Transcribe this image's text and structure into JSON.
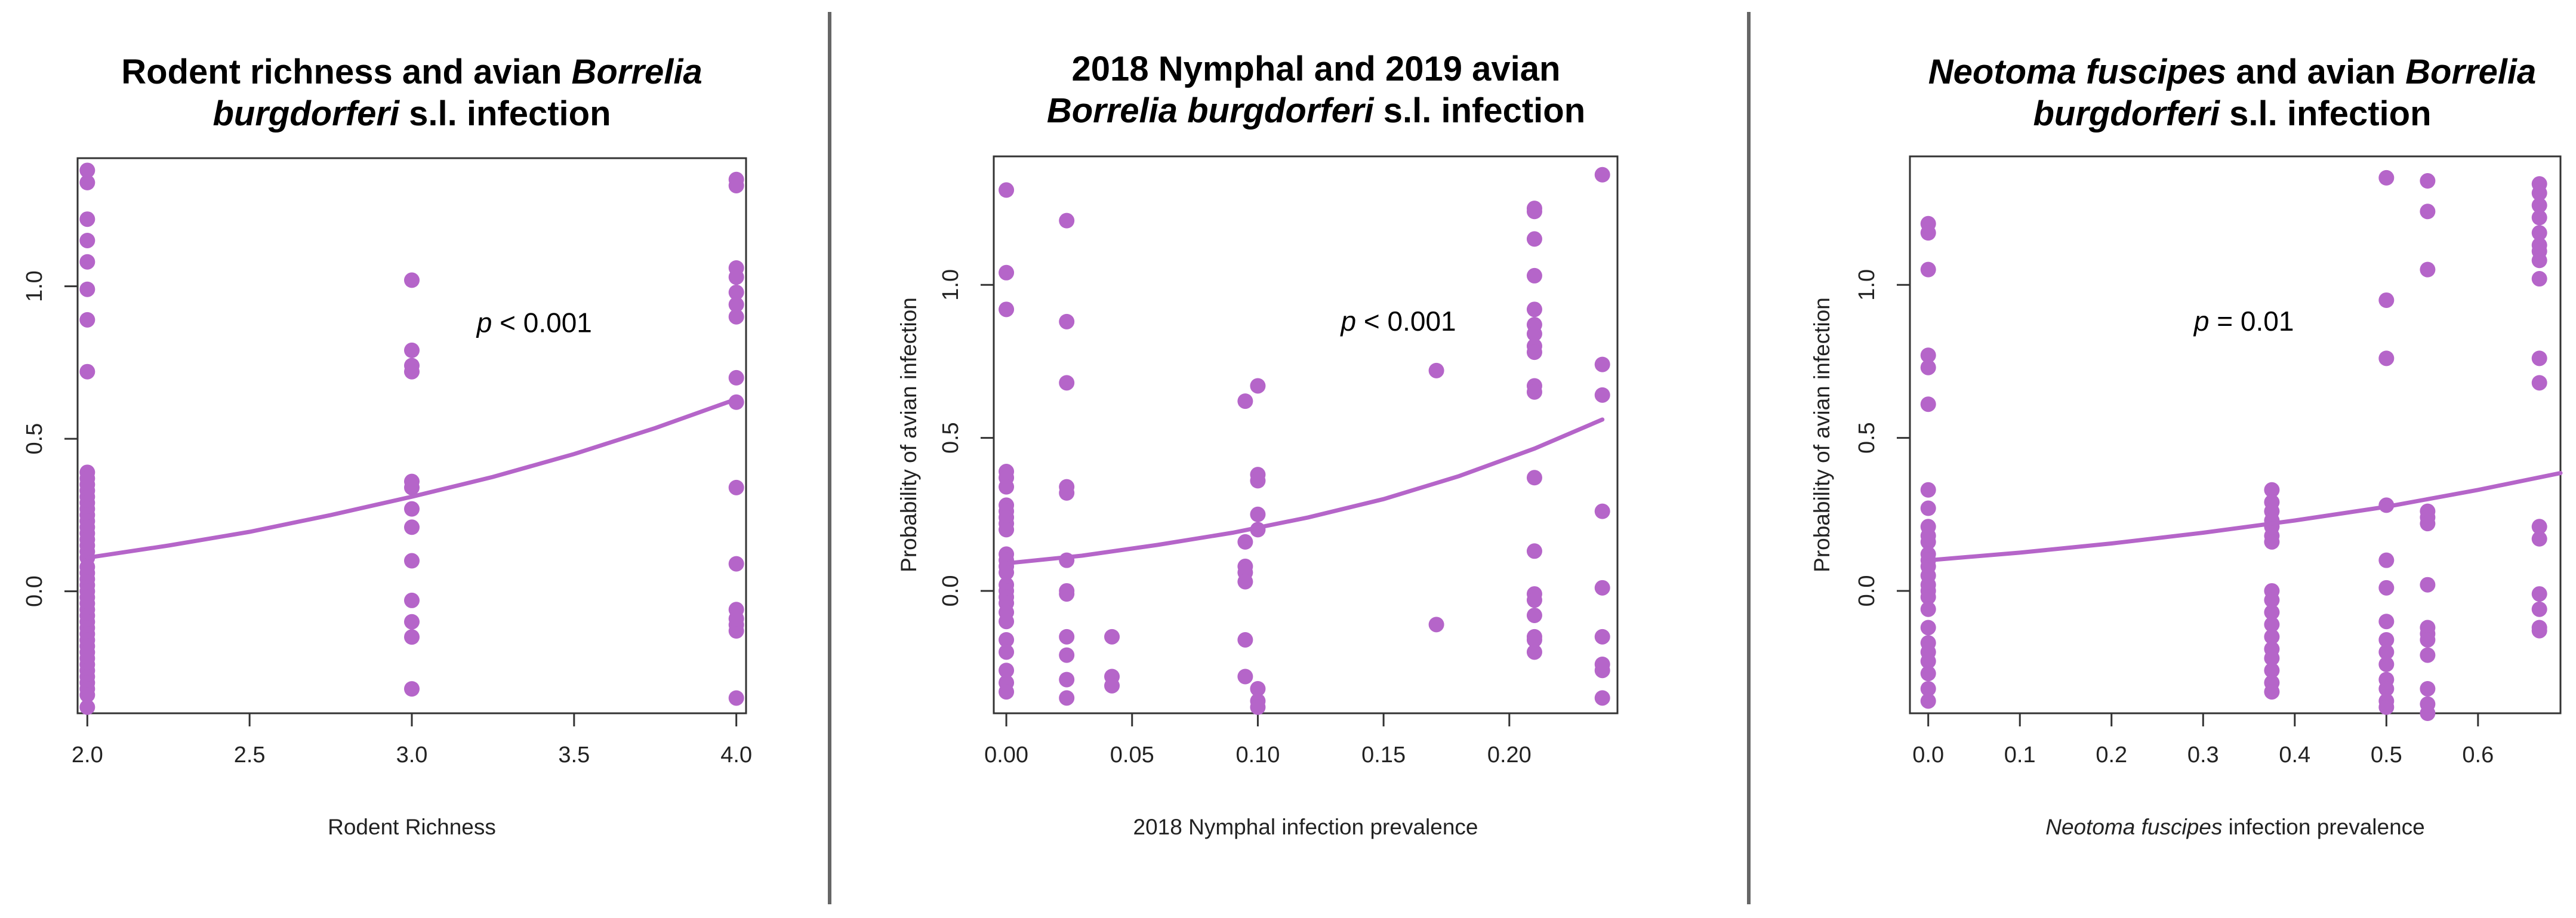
{
  "chart_data": [
    {
      "type": "scatter",
      "title": [
        [
          {
            "t": "Rodent richness and avian ",
            "i": false
          },
          {
            "t": "Borrelia",
            "i": true
          }
        ],
        [
          {
            "t": "burgdorferi",
            "i": true
          },
          {
            "t": " s.l. infection",
            "i": false
          }
        ]
      ],
      "title_plain": "Rodent richness and avian Borrelia burgdorferi s.l. infection",
      "xlabel": "Rodent Richness",
      "xlabel_italic_prefix": "",
      "ylabel": "",
      "xlim": [
        1.97,
        4.03
      ],
      "ylim": [
        -0.4,
        1.42
      ],
      "xticks": [
        2.0,
        2.5,
        3.0,
        3.5,
        4.0
      ],
      "xtick_labels": [
        "2.0",
        "2.5",
        "3.0",
        "3.5",
        "4.0"
      ],
      "yticks": [
        0.0,
        0.5,
        1.0
      ],
      "ytick_labels": [
        "0.0",
        "0.5",
        "1.0"
      ],
      "annotation": {
        "p": "p",
        "rest": " < 0.001",
        "x": 3.2,
        "y": 0.85
      },
      "color": "#b565c9",
      "points": {
        "x": [
          2,
          2,
          2,
          2,
          2,
          2,
          2,
          2,
          2,
          2,
          2,
          2,
          2,
          2,
          2,
          2,
          2,
          2,
          2,
          2,
          2,
          2,
          2,
          2,
          2,
          2,
          2,
          2,
          2,
          2,
          2,
          2,
          2,
          2,
          2,
          2,
          2,
          2,
          2,
          2,
          2,
          2,
          2,
          2,
          2,
          2,
          3,
          3,
          3,
          3,
          3,
          3,
          3,
          3,
          3,
          3,
          3,
          3,
          3,
          4,
          4,
          4,
          4,
          4,
          4,
          4,
          4,
          4,
          4,
          4,
          4,
          4,
          4,
          4,
          4
        ],
        "y": [
          1.38,
          1.34,
          1.22,
          1.15,
          1.08,
          0.99,
          0.89,
          0.72,
          0.39,
          0.37,
          0.35,
          0.33,
          0.31,
          0.29,
          0.27,
          0.25,
          0.23,
          0.21,
          0.19,
          0.17,
          0.15,
          0.13,
          0.11,
          0.04,
          0.02,
          0.0,
          -0.02,
          -0.04,
          -0.06,
          -0.08,
          -0.1,
          -0.12,
          -0.14,
          -0.16,
          -0.18,
          -0.2,
          -0.22,
          -0.24,
          -0.26,
          -0.28,
          -0.3,
          -0.32,
          -0.34,
          -0.38,
          0.06,
          0.08,
          1.02,
          0.79,
          0.74,
          0.72,
          0.36,
          0.34,
          0.27,
          0.21,
          0.1,
          -0.03,
          -0.1,
          -0.15,
          -0.32,
          1.35,
          1.33,
          1.06,
          1.03,
          0.98,
          0.94,
          0.9,
          0.7,
          0.62,
          0.34,
          0.09,
          -0.06,
          -0.11,
          -0.13,
          -0.35,
          -0.09
        ]
      },
      "fit": {
        "x": [
          2.0,
          2.25,
          2.5,
          2.75,
          3.0,
          3.25,
          3.5,
          3.75,
          4.0
        ],
        "y": [
          0.11,
          0.15,
          0.195,
          0.25,
          0.31,
          0.375,
          0.45,
          0.535,
          0.63
        ]
      }
    },
    {
      "type": "scatter",
      "title": [
        [
          {
            "t": "2018 Nymphal and 2019 avian",
            "i": false
          }
        ],
        [
          {
            "t": "Borrelia burgdorferi",
            "i": true
          },
          {
            "t": " s.l. infection",
            "i": false
          }
        ]
      ],
      "title_plain": "2018 Nymphal and 2019 avian Borrelia burgdorferi s.l. infection",
      "xlabel": "2018 Nymphal infection prevalence",
      "xlabel_italic_prefix": "",
      "ylabel": "Probability of avian infection",
      "xlim": [
        -0.005,
        0.243
      ],
      "ylim": [
        -0.4,
        1.42
      ],
      "xticks": [
        0.0,
        0.05,
        0.1,
        0.15,
        0.2
      ],
      "xtick_labels": [
        "0.00",
        "0.05",
        "0.10",
        "0.15",
        "0.20"
      ],
      "yticks": [
        0.0,
        0.5,
        1.0
      ],
      "ytick_labels": [
        "0.0",
        "0.5",
        "1.0"
      ],
      "annotation": {
        "p": "p",
        "rest": " < 0.001",
        "x": 0.133,
        "y": 0.85
      },
      "color": "#b565c9",
      "points": {
        "x": [
          0,
          0,
          0,
          0,
          0,
          0,
          0,
          0,
          0,
          0,
          0,
          0,
          0,
          0,
          0,
          0,
          0,
          0,
          0,
          0,
          0,
          0,
          0,
          0,
          0,
          0,
          0.024,
          0.024,
          0.024,
          0.024,
          0.024,
          0.024,
          0.024,
          0.024,
          0.024,
          0.024,
          0.024,
          0.024,
          0.042,
          0.042,
          0.042,
          0.095,
          0.095,
          0.095,
          0.095,
          0.095,
          0.095,
          0.095,
          0.1,
          0.1,
          0.1,
          0.1,
          0.1,
          0.1,
          0.1,
          0.1,
          0.171,
          0.171,
          0.21,
          0.21,
          0.21,
          0.21,
          0.21,
          0.21,
          0.21,
          0.21,
          0.21,
          0.21,
          0.21,
          0.21,
          0.21,
          0.21,
          0.21,
          0.21,
          0.21,
          0.21,
          0.21,
          0.237,
          0.237,
          0.237,
          0.237,
          0.237,
          0.237,
          0.237,
          0.237,
          0.237
        ],
        "y": [
          1.31,
          1.04,
          0.92,
          0.39,
          0.37,
          0.34,
          0.28,
          0.26,
          0.24,
          0.22,
          0.2,
          0.12,
          0.1,
          0.08,
          0.06,
          0.02,
          0.0,
          -0.02,
          -0.04,
          -0.07,
          -0.1,
          -0.16,
          -0.2,
          -0.26,
          -0.3,
          -0.33,
          1.21,
          0.88,
          0.68,
          0.34,
          0.32,
          0.1,
          0.0,
          -0.01,
          -0.15,
          -0.21,
          -0.29,
          -0.35,
          -0.15,
          -0.28,
          -0.31,
          0.62,
          0.16,
          0.08,
          0.06,
          0.03,
          -0.16,
          -0.28,
          0.67,
          0.38,
          0.36,
          0.25,
          0.2,
          -0.32,
          -0.36,
          -0.38,
          0.72,
          -0.11,
          1.25,
          1.24,
          1.15,
          1.03,
          0.92,
          0.87,
          0.84,
          0.8,
          0.78,
          0.67,
          0.65,
          0.37,
          0.13,
          -0.01,
          -0.03,
          -0.08,
          -0.15,
          -0.16,
          -0.2,
          1.36,
          0.74,
          0.64,
          0.26,
          0.01,
          -0.15,
          -0.24,
          -0.26,
          -0.35
        ]
      },
      "fit": {
        "x": [
          0.0,
          0.03,
          0.06,
          0.09,
          0.12,
          0.15,
          0.18,
          0.21,
          0.237
        ],
        "y": [
          0.09,
          0.115,
          0.15,
          0.19,
          0.24,
          0.3,
          0.375,
          0.465,
          0.56
        ]
      }
    },
    {
      "type": "scatter",
      "title": [
        [
          {
            "t": "Neotoma fuscipes",
            "i": true
          },
          {
            "t": " and avian ",
            "i": false
          },
          {
            "t": "Borrelia",
            "i": true
          }
        ],
        [
          {
            "t": "burgdorferi",
            "i": true
          },
          {
            "t": " s.l. infection",
            "i": false
          }
        ]
      ],
      "title_plain": "Neotoma fuscipes and avian Borrelia burgdorferi s.l. infection",
      "xlabel": " infection prevalence",
      "xlabel_italic_prefix": "Neotoma fuscipes",
      "ylabel": "Probability of avian infection",
      "xlim": [
        -0.02,
        0.69
      ],
      "ylim": [
        -0.4,
        1.42
      ],
      "xticks": [
        0.0,
        0.1,
        0.2,
        0.3,
        0.4,
        0.5,
        0.6
      ],
      "xtick_labels": [
        "0.0",
        "0.1",
        "0.2",
        "0.3",
        "0.4",
        "0.5",
        "0.6"
      ],
      "yticks": [
        0.0,
        0.5,
        1.0
      ],
      "ytick_labels": [
        "0.0",
        "0.5",
        "1.0"
      ],
      "annotation": {
        "p": "p",
        "rest": " = 0.01",
        "x": 0.29,
        "y": 0.85
      },
      "color": "#b565c9",
      "points": {
        "x": [
          0,
          0,
          0,
          0,
          0,
          0,
          0,
          0,
          0,
          0,
          0,
          0,
          0,
          0,
          0,
          0,
          0,
          0,
          0,
          0,
          0,
          0,
          0,
          0,
          0,
          0,
          0.375,
          0.375,
          0.375,
          0.375,
          0.375,
          0.375,
          0.375,
          0.375,
          0.375,
          0.375,
          0.375,
          0.375,
          0.375,
          0.375,
          0.375,
          0.375,
          0.375,
          0.5,
          0.5,
          0.5,
          0.5,
          0.5,
          0.5,
          0.5,
          0.5,
          0.5,
          0.5,
          0.5,
          0.5,
          0.5,
          0.5,
          0.545,
          0.545,
          0.545,
          0.545,
          0.545,
          0.545,
          0.545,
          0.545,
          0.545,
          0.545,
          0.545,
          0.545,
          0.545,
          0.545,
          0.667,
          0.667,
          0.667,
          0.667,
          0.667,
          0.667,
          0.667,
          0.667,
          0.667,
          0.667,
          0.667,
          0.667,
          0.667,
          0.667,
          0.667,
          0.667,
          0.667
        ],
        "y": [
          1.2,
          1.17,
          1.05,
          0.77,
          0.73,
          0.61,
          0.33,
          0.27,
          0.21,
          0.18,
          0.16,
          0.12,
          0.1,
          0.08,
          0.05,
          0.02,
          0.0,
          -0.02,
          -0.06,
          -0.12,
          -0.17,
          -0.2,
          -0.23,
          -0.27,
          -0.32,
          -0.36,
          0.33,
          0.29,
          0.26,
          0.23,
          0.21,
          0.18,
          0.16,
          0.0,
          -0.03,
          -0.07,
          -0.11,
          -0.15,
          -0.19,
          -0.22,
          -0.26,
          -0.3,
          -0.33,
          1.35,
          0.95,
          0.76,
          0.28,
          0.1,
          -0.1,
          -0.16,
          -0.2,
          -0.24,
          -0.29,
          -0.32,
          -0.36,
          -0.38,
          0.01,
          1.34,
          1.24,
          1.05,
          0.26,
          0.24,
          0.22,
          0.02,
          -0.12,
          -0.14,
          -0.16,
          -0.21,
          -0.32,
          -0.37,
          -0.4,
          1.33,
          1.3,
          1.26,
          1.22,
          1.17,
          1.13,
          1.11,
          1.08,
          1.02,
          0.76,
          0.68,
          0.21,
          0.17,
          -0.01,
          -0.06,
          -0.12,
          -0.13
        ]
      },
      "fit": {
        "x": [
          0.0,
          0.1,
          0.2,
          0.3,
          0.4,
          0.5,
          0.6,
          0.69
        ],
        "y": [
          0.1,
          0.125,
          0.155,
          0.19,
          0.23,
          0.275,
          0.33,
          0.385
        ]
      }
    }
  ]
}
